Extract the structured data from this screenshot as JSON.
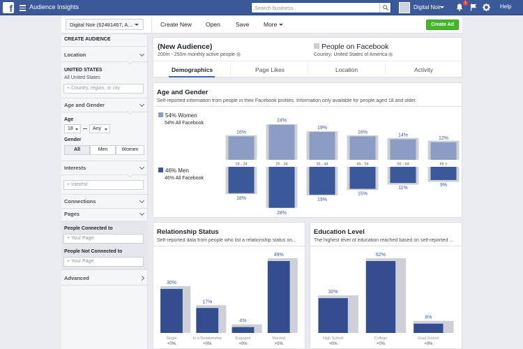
{
  "topbar": {
    "app_title": "Audience Insights",
    "search_placeholder": "Search business",
    "account_name": "Digital Noir",
    "notification_count": "1",
    "help_label": "Help"
  },
  "toolbar": {
    "account_select": "Digital Noir (62481467, A...",
    "create_new": "Create New",
    "open": "Open",
    "save": "Save",
    "more": "More",
    "create_ad": "Create Ad"
  },
  "sidebar": {
    "header": "CREATE AUDIENCE",
    "location": {
      "section": "Location",
      "country": "UNITED STATES",
      "region": "All United States",
      "placeholder": "Country, region, or city"
    },
    "age_gender": {
      "section": "Age and Gender",
      "age_label": "Age",
      "age_min": "18",
      "age_max": "Any",
      "gender_label": "Gender",
      "gender_options": [
        "All",
        "Men",
        "Women"
      ],
      "selected_gender": "All"
    },
    "interests": {
      "section": "Interests",
      "placeholder": "Interest"
    },
    "connections": {
      "section": "Connections"
    },
    "pages": {
      "section": "Pages",
      "connected_label": "People Connected to",
      "not_connected_label": "People Not Connected to",
      "page_placeholder": "Your Page"
    },
    "advanced": {
      "section": "Advanced"
    }
  },
  "audience": {
    "title": "(New Audience)",
    "subtitle": "200m - 250m monthly active people",
    "comparison_title": "People on Facebook",
    "comparison_subtitle": "Country: United States of America",
    "tabs": [
      "Demographics",
      "Page Likes",
      "Location",
      "Activity"
    ],
    "active_tab": "Demographics"
  },
  "age_gender_section": {
    "title": "Age and Gender",
    "subtitle": "Self-reported information from people in their Facebook profiles. Information only available for people aged 18 and older.",
    "women_label": "54% Women",
    "women_all_facebook": "54% All Facebook",
    "men_label": "46% Men",
    "men_all_facebook": "46% All Facebook"
  },
  "relationship_section": {
    "title": "Relationship Status",
    "subtitle": "Self-reported data from people who list a relationship status on..."
  },
  "education_section": {
    "title": "Education Level",
    "subtitle": "The highest level of education reached based on self-reported ..."
  },
  "colors": {
    "topbar": "#3b5998",
    "women": "#8b9dc3",
    "men": "#3b5998",
    "bar_dark": "#344d8f",
    "bar_compare": "#cdd0d6",
    "create_ad": "#42b72a"
  },
  "chart_data": [
    {
      "type": "bar",
      "name": "age-and-gender",
      "categories": [
        "18 - 24",
        "25 - 34",
        "35 - 44",
        "45 - 54",
        "55 - 64",
        "65 +"
      ],
      "series": [
        {
          "name": "Women",
          "values": [
            16,
            24,
            19,
            16,
            14,
            12
          ],
          "labels": [
            "16%",
            "24%",
            "19%",
            "16%",
            "14%",
            "12%"
          ]
        },
        {
          "name": "Men",
          "values": [
            18,
            28,
            19,
            15,
            11,
            9
          ],
          "labels": [
            "18%",
            "28%",
            "19%",
            "15%",
            "11%",
            "9%"
          ]
        }
      ]
    },
    {
      "type": "bar",
      "name": "relationship-status",
      "categories": [
        "Single",
        "In a Relationship",
        "Engaged",
        "Married"
      ],
      "values": [
        30,
        17,
        4,
        49
      ],
      "labels": [
        "30%",
        "17%",
        "4%",
        "49%"
      ],
      "differences": [
        "+0%",
        "+0%",
        "+0%",
        "+0%"
      ],
      "ylim": [
        0,
        49
      ]
    },
    {
      "type": "bar",
      "name": "education-level",
      "categories": [
        "High School",
        "College",
        "Grad School"
      ],
      "values": [
        30,
        62,
        8
      ],
      "labels": [
        "30%",
        "62%",
        "8%"
      ],
      "differences": [
        "+0%",
        "+0%",
        "+0%"
      ],
      "ylim": [
        0,
        62
      ]
    }
  ]
}
